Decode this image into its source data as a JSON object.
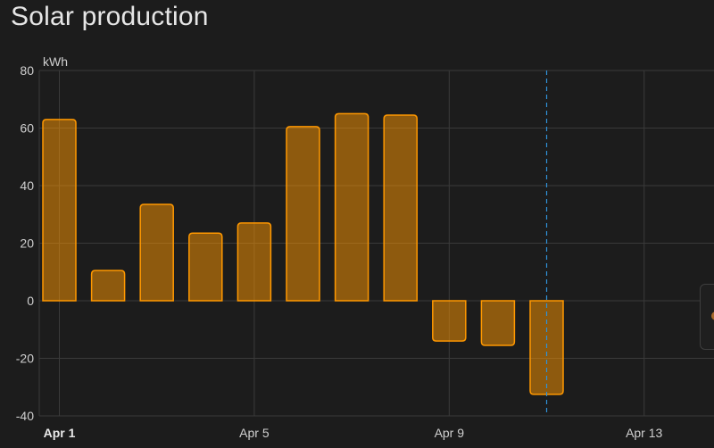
{
  "card": {
    "title": "Solar production"
  },
  "colors": {
    "background": "#1c1c1c",
    "bar_fill": "rgba(255,152,0,0.5)",
    "bar_stroke": "#ff9800",
    "grid": "#3a3a3a",
    "now_line": "#2f8fd6"
  },
  "legend": {
    "marker_icon": "legend-dot-icon"
  },
  "chart_data": {
    "type": "bar",
    "ylabel": "kWh",
    "ylim": [
      -40,
      80
    ],
    "yticks": [
      80,
      60,
      40,
      20,
      0,
      -20,
      -40
    ],
    "xlim": [
      "Mar 31",
      "Apr 14"
    ],
    "xticks": [
      {
        "label": "Apr 1",
        "bold": true
      },
      {
        "label": "Apr 5",
        "bold": false
      },
      {
        "label": "Apr 9",
        "bold": false
      },
      {
        "label": "Apr 13",
        "bold": false
      }
    ],
    "categories": [
      "Apr 1",
      "Apr 2",
      "Apr 3",
      "Apr 4",
      "Apr 5",
      "Apr 6",
      "Apr 7",
      "Apr 8",
      "Apr 9",
      "Apr 10",
      "Apr 11"
    ],
    "values": [
      63,
      10.5,
      33.5,
      23.5,
      27,
      60.5,
      65,
      64.5,
      -14,
      -15.5,
      -32.5
    ],
    "now_marker": "Apr 11",
    "grid": true
  }
}
